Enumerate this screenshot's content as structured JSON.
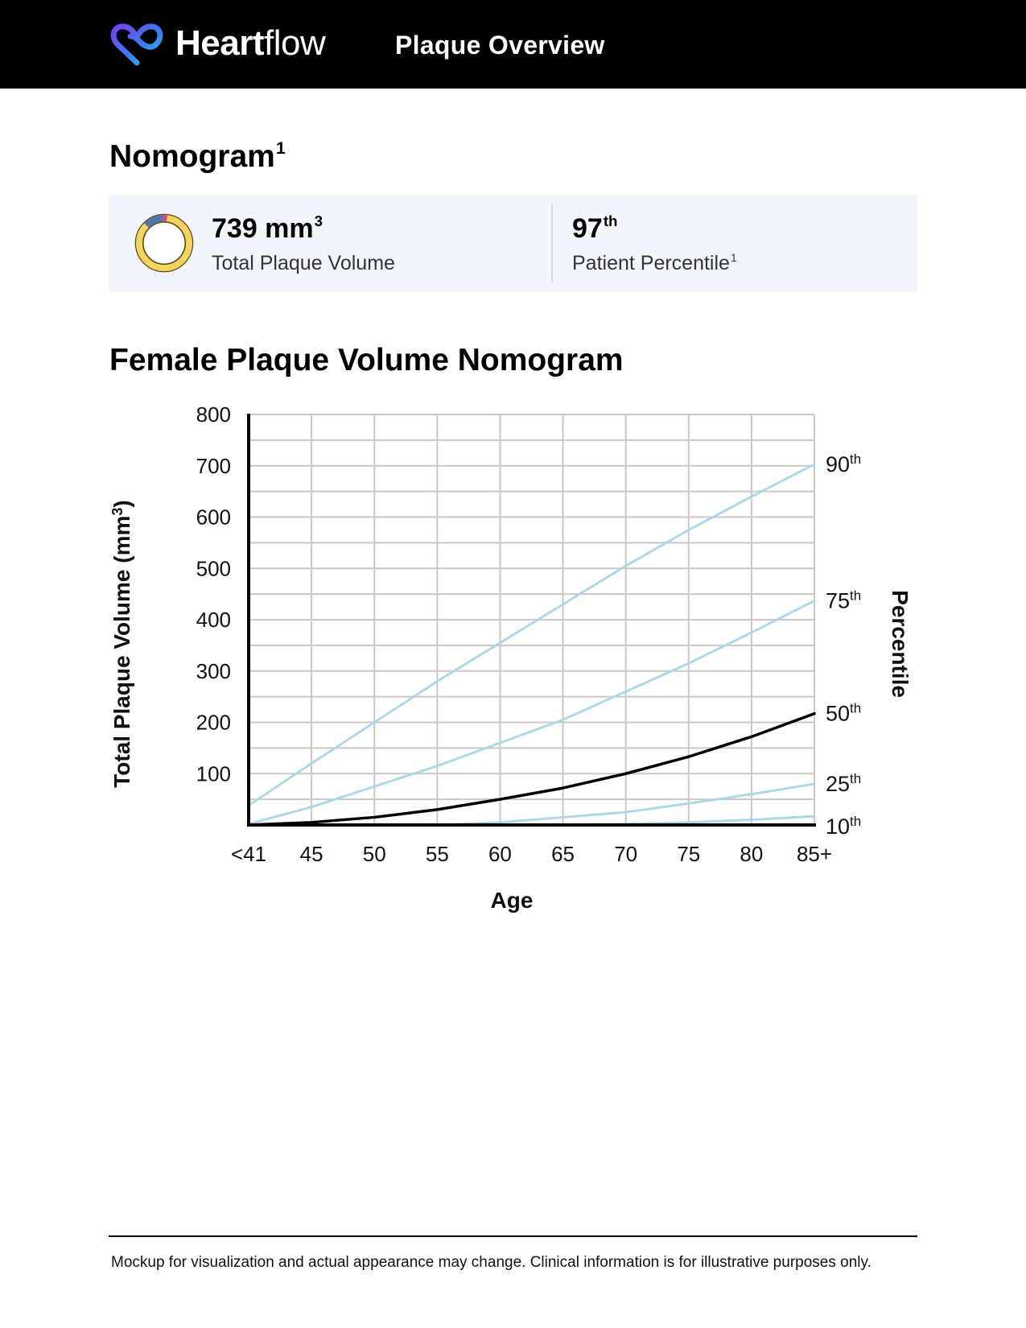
{
  "header": {
    "brand_bold": "Heart",
    "brand_light": "flow",
    "title": "Plaque Overview",
    "logo_icon": "heart-infinity-logo-icon",
    "background": "#000000"
  },
  "nomogram_heading": {
    "text": "Nomogram",
    "sup": "1"
  },
  "summary": {
    "total_plaque_volume": {
      "value": "739 mm",
      "sup": "3",
      "label": "Total Plaque Volume"
    },
    "patient_percentile": {
      "value": "97",
      "sup": "th",
      "label": "Patient Percentile",
      "label_sup": "1"
    },
    "donut_icon": "plaque-composition-ring-icon",
    "donut_colors": {
      "calcified": "#f4d35e",
      "noncalcified": "#4f78b0",
      "low_attenuation": "#e0457b"
    }
  },
  "chart_heading": "Female Plaque Volume Nomogram",
  "chart_data": {
    "type": "line",
    "title": "Female Plaque Volume Nomogram",
    "xlabel": "Age",
    "ylabel": "Total Plaque Volume (mm",
    "ylabel_sup": "3",
    "ylabel_close": ")",
    "y2label": "Percentile",
    "x_tick_labels": [
      "<41",
      "45",
      "50",
      "55",
      "60",
      "65",
      "70",
      "75",
      "80",
      "85+"
    ],
    "x_tick_values": [
      40,
      45,
      50,
      55,
      60,
      65,
      70,
      75,
      80,
      85
    ],
    "xlim": [
      40,
      85
    ],
    "y_tick_labels": [
      "100",
      "200",
      "300",
      "400",
      "500",
      "600",
      "700",
      "800"
    ],
    "y_tick_values": [
      100,
      200,
      300,
      400,
      500,
      600,
      700,
      800
    ],
    "ylim": [
      0,
      800
    ],
    "grid": true,
    "series": [
      {
        "name": "90",
        "name_sup": "th",
        "color": "#add8e6",
        "x": [
          40,
          45,
          50,
          55,
          60,
          65,
          70,
          75,
          80,
          85
        ],
        "y": [
          38,
          120,
          200,
          280,
          355,
          430,
          505,
          575,
          640,
          703
        ]
      },
      {
        "name": "75",
        "name_sup": "th",
        "color": "#add8e6",
        "x": [
          40,
          45,
          50,
          55,
          60,
          65,
          70,
          75,
          80,
          85
        ],
        "y": [
          2,
          35,
          75,
          115,
          160,
          205,
          260,
          315,
          375,
          437
        ]
      },
      {
        "name": "50",
        "name_sup": "th",
        "color": "#000000",
        "x": [
          40,
          45,
          50,
          55,
          60,
          65,
          70,
          75,
          80,
          85
        ],
        "y": [
          0,
          5,
          15,
          30,
          50,
          72,
          100,
          133,
          172,
          217
        ]
      },
      {
        "name": "25",
        "name_sup": "th",
        "color": "#add8e6",
        "x": [
          40,
          45,
          50,
          55,
          60,
          65,
          70,
          75,
          80,
          85
        ],
        "y": [
          0,
          0,
          0,
          0,
          5,
          15,
          25,
          42,
          60,
          80
        ]
      },
      {
        "name": "10",
        "name_sup": "th",
        "color": "#add8e6",
        "x": [
          40,
          45,
          50,
          55,
          60,
          65,
          70,
          75,
          80,
          85
        ],
        "y": [
          0,
          0,
          0,
          0,
          0,
          0,
          2,
          5,
          10,
          17
        ]
      }
    ]
  },
  "footer": {
    "note": "Mockup for visualization and actual appearance may change. Clinical information is for illustrative purposes only."
  }
}
